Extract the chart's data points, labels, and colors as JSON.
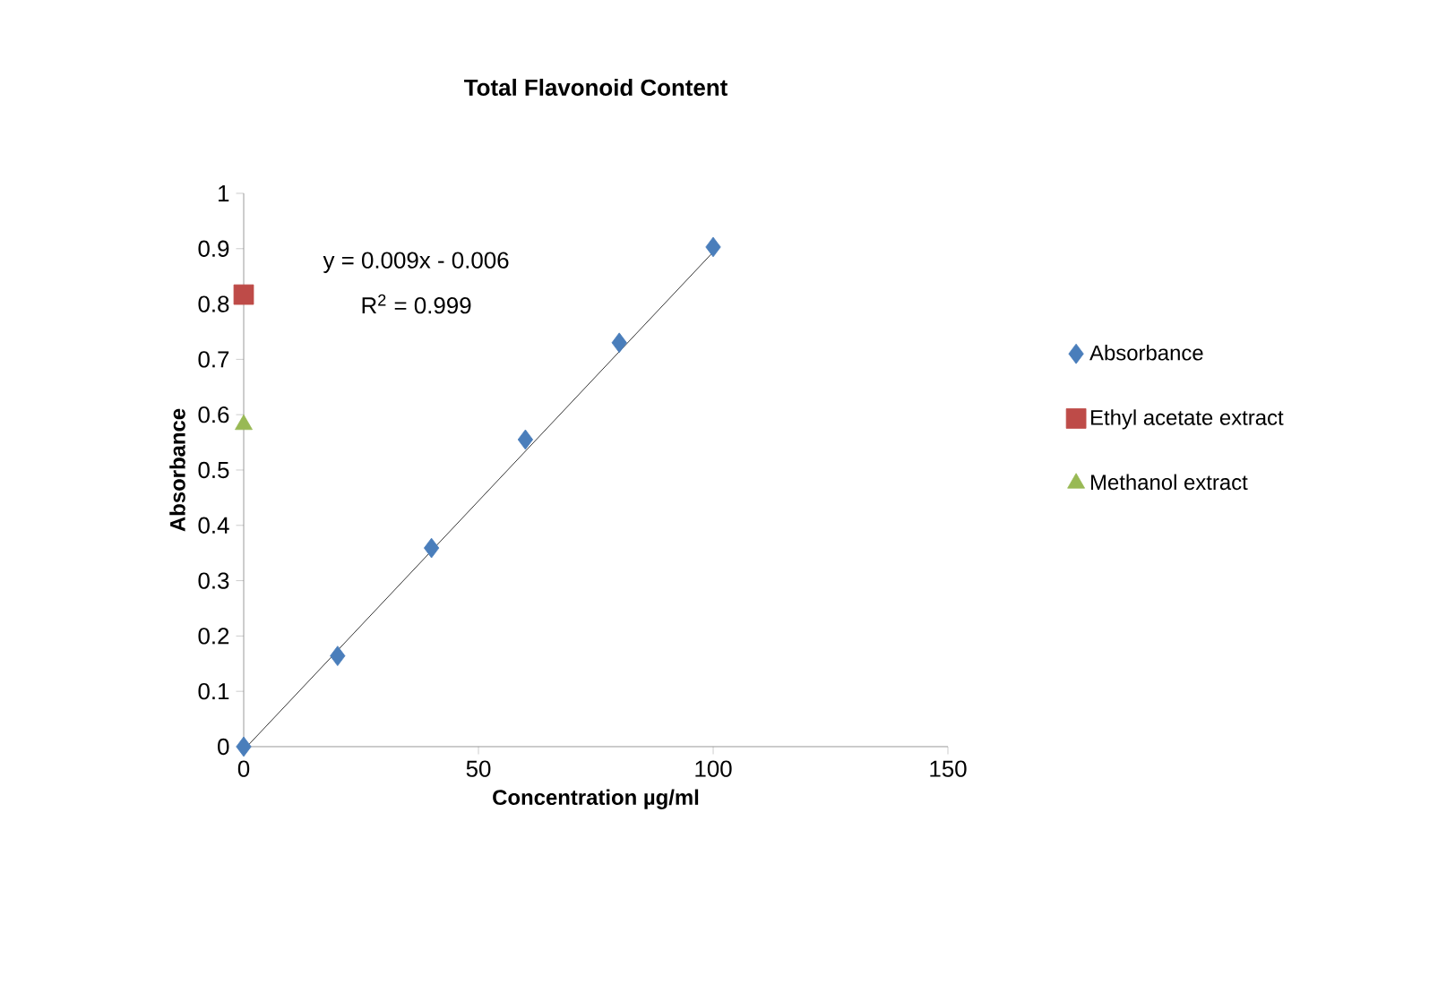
{
  "chart_data": {
    "type": "scatter",
    "title": "Total Flavonoid Content",
    "xlabel": "Concentration µg/ml",
    "ylabel": "Absorbance",
    "xlim": [
      0,
      150
    ],
    "xticks": [
      0,
      50,
      100,
      150
    ],
    "ylim": [
      0,
      1
    ],
    "yticks": [
      0,
      0.1,
      0.2,
      0.3,
      0.4,
      0.5,
      0.6,
      0.7,
      0.8,
      0.9,
      1
    ],
    "legend": "right",
    "grid": false,
    "annotations": [
      "y = 0.009x - 0.006",
      "R$^{2}$ = 0.999"
    ],
    "series": [
      {
        "name": "Absorbance",
        "color": "#4a7ebb",
        "marker": "diamond",
        "x": [
          0,
          20,
          40,
          60,
          80,
          100
        ],
        "values": [
          0,
          0.164,
          0.359,
          0.555,
          0.73,
          0.903
        ]
      },
      {
        "name": "Ethyl acetate extract",
        "color": "#be4b48",
        "marker": "square",
        "x": [
          0
        ],
        "values": [
          0.817
        ]
      },
      {
        "name": "Methanol extract",
        "color": "#98b954",
        "marker": "triangle",
        "x": [
          0
        ],
        "values": [
          0.582
        ]
      },
      {
        "type": "line",
        "color": "#000000",
        "marker": "none",
        "line_style": "solid",
        "x": [
          0.67,
          100
        ],
        "values": [
          0,
          0.894
        ]
      }
    ]
  }
}
